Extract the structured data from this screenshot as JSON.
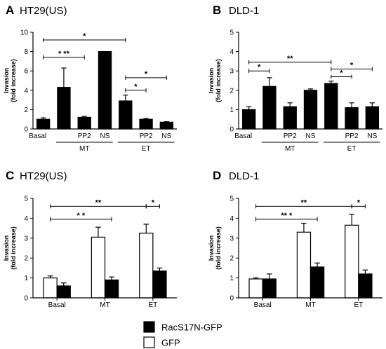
{
  "chart_data": [
    {
      "type": "bar",
      "letter": "A",
      "title": "HT29(US)",
      "ylabel": [
        "Invasion",
        "(fold increase)"
      ],
      "ylim": [
        0,
        10
      ],
      "yticks": [
        0,
        2,
        4,
        6,
        8,
        10
      ],
      "categories": [
        "Basal",
        "",
        "PP2",
        "NS",
        "",
        "PP2",
        "NS"
      ],
      "groups": [
        {
          "label": "MT",
          "from": 1,
          "to": 3
        },
        {
          "label": "ET",
          "from": 4,
          "to": 6
        }
      ],
      "series": [
        {
          "values": [
            1.0,
            4.3,
            1.2,
            8.0,
            2.9,
            1.0,
            0.7
          ],
          "errors": [
            0.15,
            2.0,
            0.1,
            0.0,
            0.6,
            0.08,
            0.05
          ],
          "color": "#000000"
        }
      ],
      "significance": [
        {
          "from": 0,
          "to": 4,
          "y": 9.2,
          "label": "*"
        },
        {
          "from": 0,
          "to": 2,
          "y": 7.4,
          "label": "* ** "
        },
        {
          "from": 4,
          "to": 6,
          "y": 5.3,
          "label": "*"
        },
        {
          "from": 4,
          "to": 5,
          "y": 4.0,
          "label": "*"
        }
      ]
    },
    {
      "type": "bar",
      "letter": "B",
      "title": "DLD-1",
      "ylabel": [
        "Invasion",
        "(fold increase)"
      ],
      "ylim": [
        0,
        5
      ],
      "yticks": [
        0,
        1,
        2,
        3,
        4,
        5
      ],
      "categories": [
        "Basal",
        "",
        "PP2",
        "NS",
        "",
        "PP2",
        "NS"
      ],
      "groups": [
        {
          "label": "MT",
          "from": 1,
          "to": 3
        },
        {
          "label": "ET",
          "from": 4,
          "to": 6
        }
      ],
      "series": [
        {
          "values": [
            1.0,
            2.2,
            1.15,
            2.0,
            2.35,
            1.1,
            1.15
          ],
          "errors": [
            0.15,
            0.45,
            0.2,
            0.07,
            0.12,
            0.25,
            0.2
          ],
          "color": "#000000"
        }
      ],
      "significance": [
        {
          "from": 0,
          "to": 4,
          "y": 3.45,
          "label": "**"
        },
        {
          "from": 0,
          "to": 1,
          "y": 3.0,
          "label": "*"
        },
        {
          "from": 4,
          "to": 6,
          "y": 3.1,
          "label": "*"
        },
        {
          "from": 4,
          "to": 5,
          "y": 2.7,
          "label": "*"
        }
      ]
    },
    {
      "type": "bar",
      "letter": "C",
      "title": "HT29(US)",
      "ylabel": [
        "Invasion",
        "(fold increase)"
      ],
      "ylim": [
        0,
        5
      ],
      "yticks": [
        0,
        1,
        2,
        3,
        4,
        5
      ],
      "categories": [
        "Basal",
        "MT",
        "ET"
      ],
      "series": [
        {
          "name": "GFP",
          "values": [
            1.0,
            3.05,
            3.25
          ],
          "errors": [
            0.1,
            0.5,
            0.45
          ],
          "color": "#ffffff"
        },
        {
          "name": "RacS17N-GFP",
          "values": [
            0.6,
            0.9,
            1.35
          ],
          "errors": [
            0.15,
            0.15,
            0.15
          ],
          "color": "#000000"
        }
      ],
      "significance": [
        {
          "from": [
            0,
            0
          ],
          "to": [
            2,
            0
          ],
          "y": 4.6,
          "label": "**"
        },
        {
          "from": [
            0,
            0
          ],
          "to": [
            1,
            1
          ],
          "y": 3.95,
          "label": "*  *"
        },
        {
          "from": [
            2,
            0
          ],
          "to": [
            2,
            1
          ],
          "y": 4.6,
          "label": "*"
        }
      ]
    },
    {
      "type": "bar",
      "letter": "D",
      "title": "DLD-1",
      "ylabel": [
        "Invasion",
        "(fold increase)"
      ],
      "ylim": [
        0,
        5
      ],
      "yticks": [
        0,
        1,
        2,
        3,
        4,
        5
      ],
      "categories": [
        "Basal",
        "MT",
        "ET"
      ],
      "series": [
        {
          "name": "GFP",
          "values": [
            0.95,
            3.3,
            3.65
          ],
          "errors": [
            0.05,
            0.45,
            0.55
          ],
          "color": "#ffffff"
        },
        {
          "name": "RacS17N-GFP",
          "values": [
            0.95,
            1.55,
            1.2
          ],
          "errors": [
            0.25,
            0.2,
            0.2
          ],
          "color": "#000000"
        }
      ],
      "significance": [
        {
          "from": [
            0,
            0
          ],
          "to": [
            2,
            0
          ],
          "y": 4.6,
          "label": "**"
        },
        {
          "from": [
            0,
            0
          ],
          "to": [
            1,
            1
          ],
          "y": 3.95,
          "label": "** *"
        },
        {
          "from": [
            2,
            0
          ],
          "to": [
            2,
            1
          ],
          "y": 4.6,
          "label": "*"
        }
      ]
    }
  ],
  "legend": [
    {
      "label": "RacS17N-GFP",
      "color": "#000000"
    },
    {
      "label": "GFP",
      "color": "#ffffff"
    }
  ]
}
